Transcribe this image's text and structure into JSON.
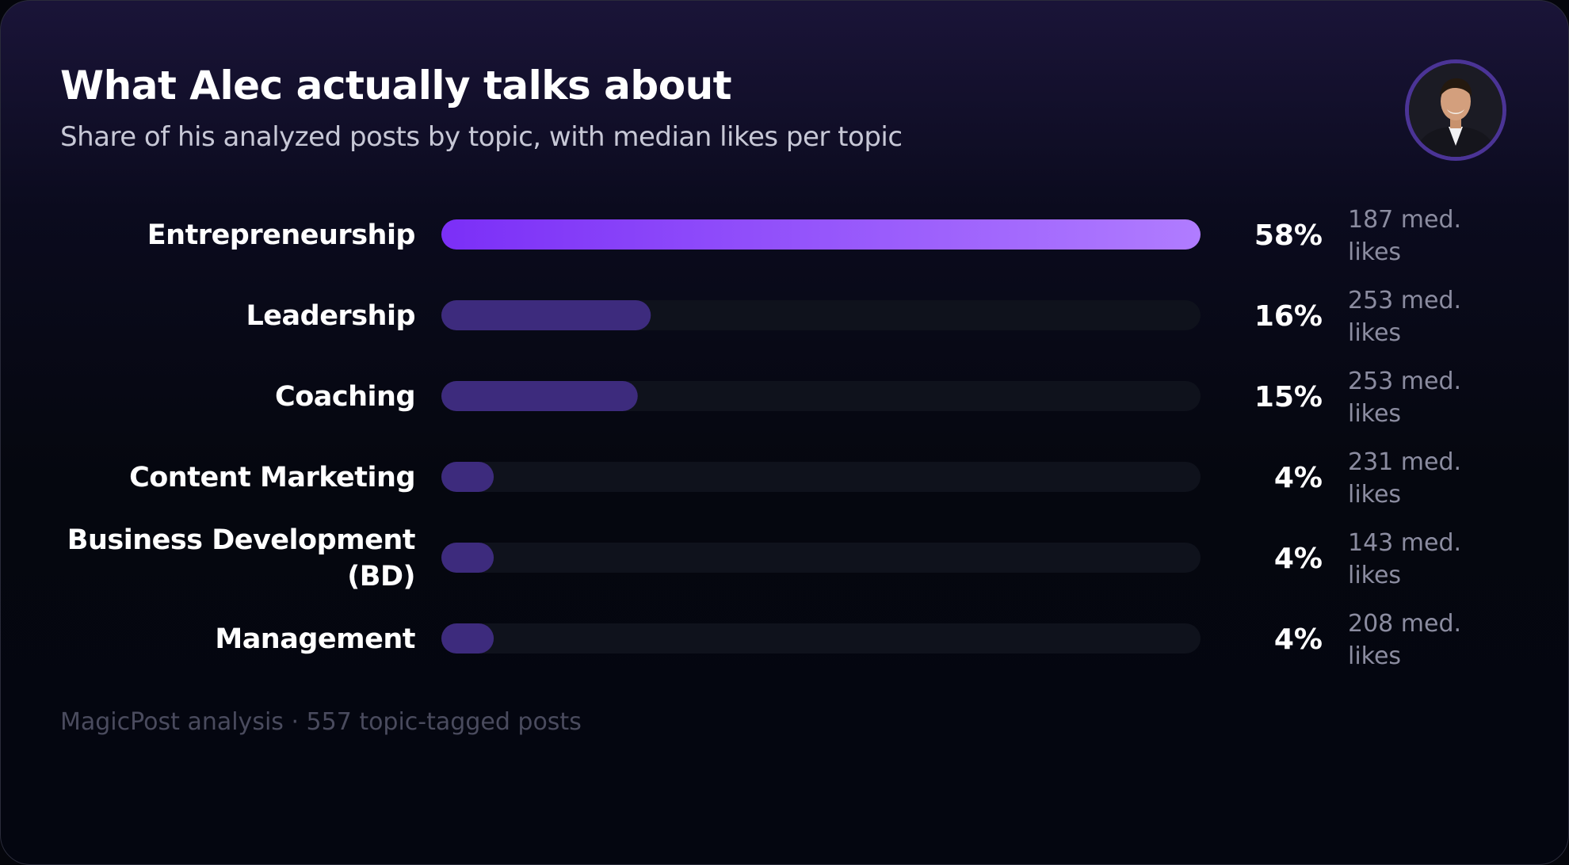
{
  "header": {
    "title": "What Alec actually talks about",
    "subtitle": "Share of his analyzed posts by topic, with median likes per topic",
    "avatar_icon": "person-avatar"
  },
  "colors": {
    "top_bar_start": "#7b2ff7",
    "top_bar_end": "#b07cff",
    "bar": "#3d2b7d",
    "track": "#0f121c",
    "label": "#ffffff",
    "value": "#ffffff",
    "secondary": "#8b8ca0"
  },
  "chart_data": {
    "type": "bar",
    "orientation": "horizontal",
    "categories": [
      [
        "Entrepreneurship"
      ],
      [
        "Leadership"
      ],
      [
        "Coaching"
      ],
      [
        "Content Marketing"
      ],
      [
        "Business Development",
        "(BD)"
      ],
      [
        "Management"
      ]
    ],
    "values": [
      58,
      16,
      15,
      4,
      4,
      4
    ],
    "value_labels": [
      "58%",
      "16%",
      "15%",
      "4%",
      "4%",
      "4%"
    ],
    "median_likes": [
      [
        "187 med.",
        "likes"
      ],
      [
        "253 med.",
        "likes"
      ],
      [
        "253 med.",
        "likes"
      ],
      [
        "231 med.",
        "likes"
      ],
      [
        "143 med.",
        "likes"
      ],
      [
        "208 med.",
        "likes"
      ]
    ],
    "xlim": [
      0,
      58
    ],
    "grid": false
  },
  "footer": {
    "text": "MagicPost analysis · 557 topic-tagged posts"
  }
}
